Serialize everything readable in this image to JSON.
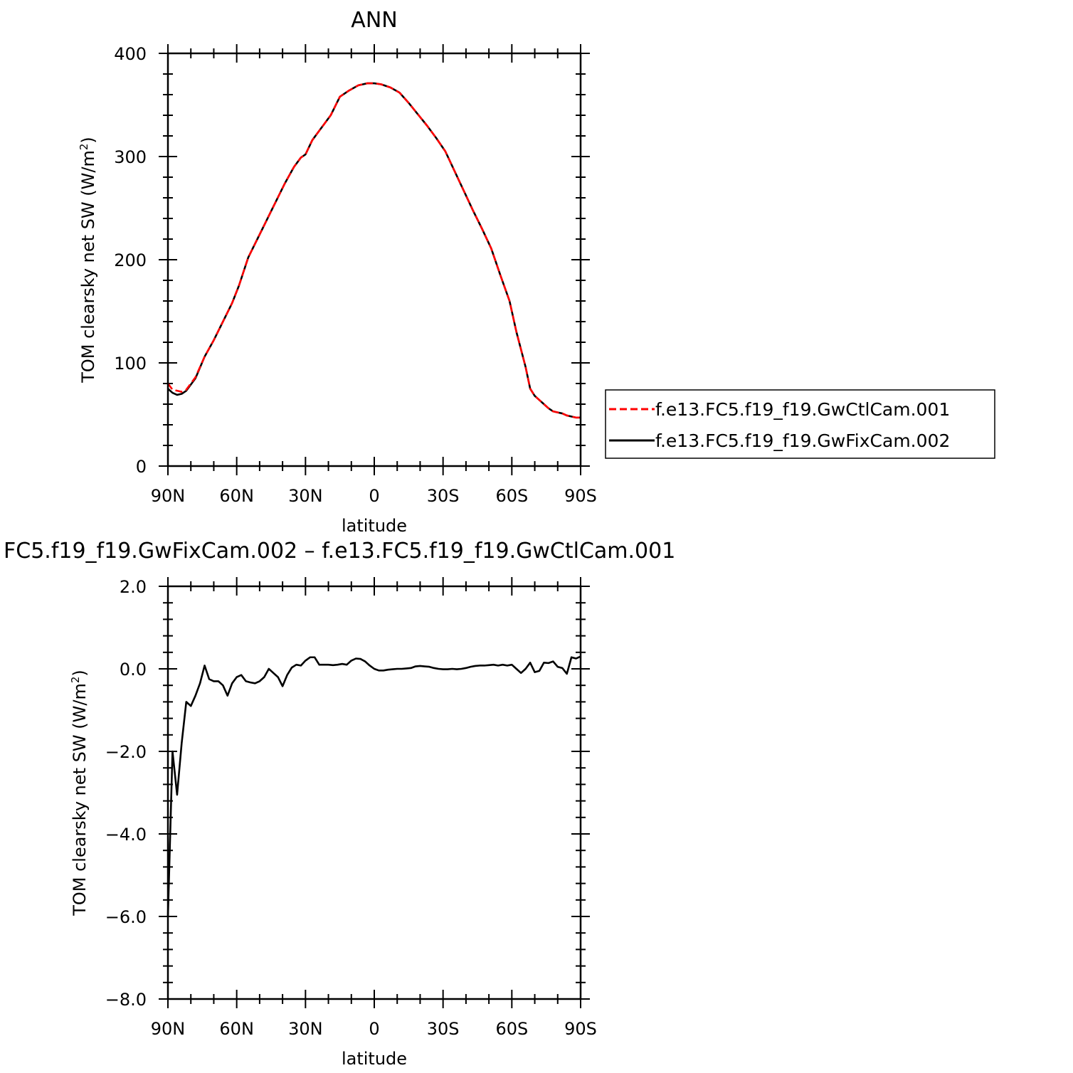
{
  "chart_data": [
    {
      "type": "line",
      "title": "ANN",
      "xlabel": "latitude",
      "ylabel": "TOM clearsky net SW (W/m",
      "ylabel_sup": "2",
      "ylabel_tail": ")",
      "xlim": [
        90,
        -90
      ],
      "ylim": [
        0,
        400
      ],
      "x_ticks": [
        90,
        60,
        30,
        0,
        -30,
        -60,
        -90
      ],
      "x_tick_labels": [
        "90N",
        "60N",
        "30N",
        "0",
        "30S",
        "60S",
        "90S"
      ],
      "y_ticks": [
        0,
        100,
        200,
        300,
        400
      ],
      "y_tick_labels": [
        "0",
        "100",
        "200",
        "300",
        "400"
      ],
      "legend": "right",
      "series": [
        {
          "name": "f.e13.FC5.f19_f19.GwCtlCam.001",
          "color": "#ff0000",
          "dash": "dashed",
          "x": [
            90,
            88,
            86,
            84,
            82,
            78,
            74,
            70,
            66,
            62,
            59,
            55,
            51,
            47,
            43,
            39,
            35,
            32,
            30,
            27,
            23,
            19,
            15,
            11,
            7,
            3,
            0,
            -3,
            -7,
            -11,
            -15,
            -19,
            -23,
            -27,
            -31,
            -35,
            -39,
            -43,
            -47,
            -51,
            -55,
            -59,
            -62,
            -66,
            -68,
            -70,
            -72,
            -74,
            -76,
            -78,
            -80,
            -82,
            -84,
            -86,
            -88,
            -90
          ],
          "y": [
            80,
            74,
            73,
            72,
            74,
            86,
            106,
            122,
            140,
            158,
            175,
            202,
            220,
            238,
            256,
            274,
            290,
            299,
            302,
            316,
            328,
            340,
            358,
            364,
            369,
            371,
            371,
            370,
            367,
            362,
            352,
            341,
            330,
            318,
            305,
            286,
            267,
            248,
            230,
            211,
            185,
            160,
            130,
            96,
            75,
            68,
            64,
            60,
            56,
            53,
            52,
            51,
            49,
            48,
            47,
            47
          ]
        },
        {
          "name": "f.e13.FC5.f19_f19.GwFixCam.002",
          "color": "#000000",
          "dash": "solid",
          "x": [
            90,
            88,
            86,
            84,
            82,
            78,
            74,
            70,
            66,
            62,
            59,
            55,
            51,
            47,
            43,
            39,
            35,
            32,
            30,
            27,
            23,
            19,
            15,
            11,
            7,
            3,
            0,
            -3,
            -7,
            -11,
            -15,
            -19,
            -23,
            -27,
            -31,
            -35,
            -39,
            -43,
            -47,
            -51,
            -55,
            -59,
            -62,
            -66,
            -68,
            -70,
            -72,
            -74,
            -76,
            -78,
            -80,
            -82,
            -84,
            -86,
            -88,
            -90
          ],
          "y": [
            75,
            71,
            69,
            70,
            73,
            85,
            106,
            122,
            140,
            158,
            175,
            202,
            220,
            238,
            256,
            274,
            290,
            299,
            302,
            316,
            328,
            340,
            358,
            364,
            369,
            371,
            371,
            370,
            367,
            362,
            352,
            341,
            330,
            318,
            305,
            286,
            267,
            248,
            230,
            211,
            185,
            160,
            130,
            96,
            75,
            68,
            64,
            60,
            56,
            53,
            52,
            51,
            49,
            48,
            47,
            47
          ]
        }
      ]
    },
    {
      "type": "line",
      "title": "FC5.f19_f19.GwFixCam.002 – f.e13.FC5.f19_f19.GwCtlCam.001",
      "xlabel": "latitude",
      "ylabel": "TOM clearsky net SW (W/m",
      "ylabel_sup": "2",
      "ylabel_tail": ")",
      "xlim": [
        90,
        -90
      ],
      "ylim": [
        -8,
        2
      ],
      "x_ticks": [
        90,
        60,
        30,
        0,
        -30,
        -60,
        -90
      ],
      "x_tick_labels": [
        "90N",
        "60N",
        "30N",
        "0",
        "30S",
        "60S",
        "90S"
      ],
      "y_ticks": [
        2,
        0,
        -2,
        -4,
        -6,
        -8
      ],
      "y_tick_labels": [
        "2.0",
        "0.0",
        "−2.0",
        "−4.0",
        "−6.0",
        "−8.0"
      ],
      "series": [
        {
          "name": "",
          "color": "#000000",
          "dash": "solid",
          "x": [
            90,
            88,
            86,
            84,
            82,
            80,
            78,
            76,
            74,
            72,
            70,
            68,
            66,
            64,
            62,
            60,
            58,
            56,
            54,
            52,
            50,
            48,
            46,
            44,
            42,
            40,
            38,
            36,
            34,
            32,
            30,
            28,
            26,
            24,
            22,
            20,
            18,
            16,
            14,
            12,
            10,
            8,
            6,
            4,
            2,
            0,
            -2,
            -4,
            -6,
            -8,
            -10,
            -12,
            -14,
            -16,
            -18,
            -20,
            -22,
            -24,
            -26,
            -28,
            -30,
            -32,
            -34,
            -36,
            -38,
            -40,
            -42,
            -44,
            -46,
            -48,
            -50,
            -52,
            -54,
            -56,
            -58,
            -60,
            -62,
            -64,
            -66,
            -68,
            -70,
            -72,
            -74,
            -76,
            -78,
            -80,
            -82,
            -84,
            -86,
            -88,
            -90
          ],
          "y": [
            -6.0,
            -2.0,
            -3.05,
            -1.8,
            -0.8,
            -0.9,
            -0.65,
            -0.35,
            0.08,
            -0.25,
            -0.3,
            -0.3,
            -0.4,
            -0.65,
            -0.35,
            -0.2,
            -0.15,
            -0.3,
            -0.33,
            -0.35,
            -0.3,
            -0.2,
            0.0,
            -0.1,
            -0.2,
            -0.42,
            -0.15,
            0.03,
            0.1,
            0.08,
            0.2,
            0.28,
            0.28,
            0.1,
            0.1,
            0.1,
            0.09,
            0.1,
            0.12,
            0.1,
            0.2,
            0.25,
            0.24,
            0.18,
            0.08,
            0.0,
            -0.04,
            -0.04,
            -0.02,
            -0.01,
            0.0,
            0.0,
            0.01,
            0.02,
            0.06,
            0.07,
            0.06,
            0.05,
            0.02,
            0.0,
            -0.01,
            -0.01,
            0.0,
            -0.01,
            0.0,
            0.02,
            0.05,
            0.07,
            0.08,
            0.08,
            0.09,
            0.1,
            0.08,
            0.1,
            0.08,
            0.1,
            0.0,
            -0.1,
            0.0,
            0.15,
            -0.08,
            -0.05,
            0.15,
            0.14,
            0.18,
            0.05,
            0.02,
            -0.12,
            0.28,
            0.25,
            0.3
          ]
        }
      ]
    }
  ]
}
